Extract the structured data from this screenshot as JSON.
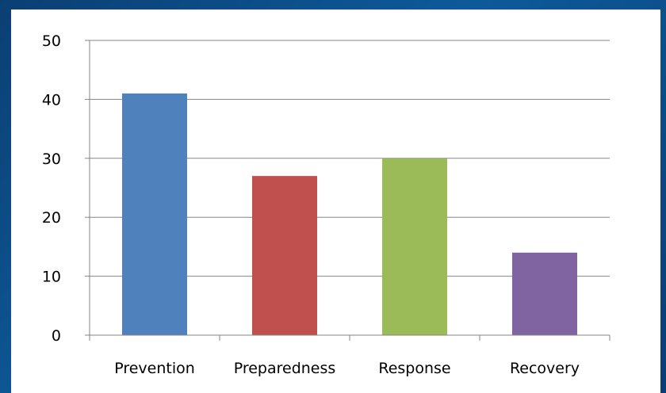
{
  "chart_data": {
    "type": "bar",
    "categories": [
      "Prevention",
      "Preparedness",
      "Response",
      "Recovery"
    ],
    "values": [
      41,
      27,
      30,
      14
    ],
    "colors": [
      "#4f81bd",
      "#c0504d",
      "#9bbb59",
      "#8064a2"
    ],
    "ylim": [
      0,
      50
    ],
    "yticks": [
      0,
      10,
      20,
      30,
      40,
      50
    ],
    "grid": true,
    "title": "",
    "xlabel": "",
    "ylabel": ""
  },
  "theme": {
    "background": "#0d5a9a",
    "plot_background": "#ffffff",
    "grid_color": "#868686"
  }
}
